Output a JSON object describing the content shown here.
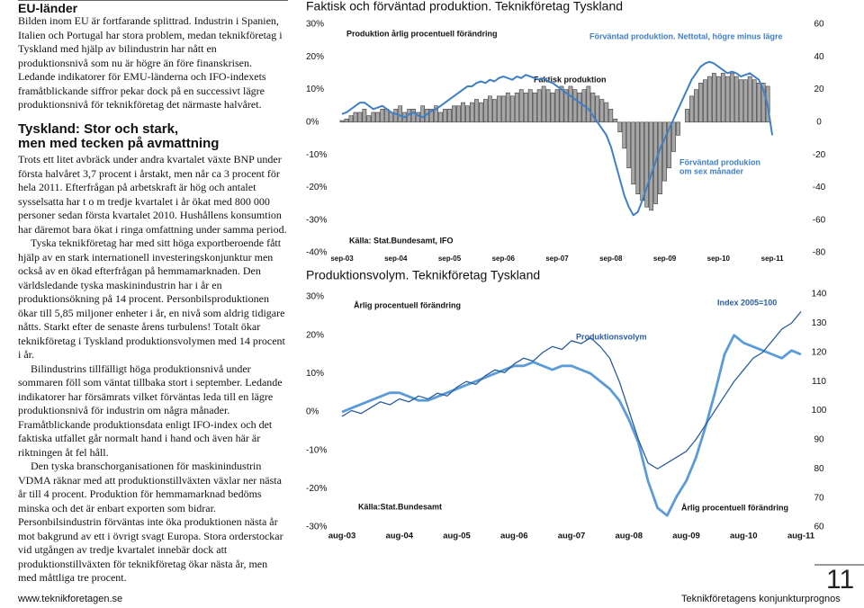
{
  "document": {
    "sections": [
      {
        "title_lines": [
          "EU-länder"
        ],
        "paragraphs": [
          "Bilden inom EU är fortfarande splittrad. Industrin i Spanien, Italien och Portugal har stora problem, medan teknikföretag i Tyskland med hjälp av bilindustrin har nått en produktionsnivå som nu är högre än före finanskrisen. Ledande indikatorer för EMU-länderna och IFO-indexets framåtblickande siffror pekar dock på en successivt lägre produktionsnivå för teknikföretag det närmaste halvåret."
        ]
      },
      {
        "title_lines": [
          "Tyskland: Stor och stark,",
          "men med tecken på avmattning"
        ],
        "paragraphs": [
          "Trots ett litet avbräck under andra kvartalet växte BNP under första halvåret 3,7 procent i årstakt, men når ca 3 procent för hela 2011. Efterfrågan på arbetskraft är hög och antalet sysselsatta har t o m tredje kvartalet i år ökat med 800 000 personer sedan första kvartalet 2010. Hushållens konsumtion har däremot bara ökat i ringa omfattning under samma period.",
          "Tyska teknikföretag har med sitt höga exportberoende fått hjälp av en stark internationell investeringskonjunktur men också av en ökad efterfrågan på hemmamarknaden. Den världsledande tyska maskinindustrin har i år en produktionsökning på 14 procent. Personbilsproduktionen ökar till 5,85 miljoner enheter i år, en nivå som aldrig tidigare nåtts. Starkt efter de senaste årens turbulens! Totalt ökar teknikföretag i Tyskland produktionsvolymen med 14 procent i år.",
          "Bilindustrins tillfälligt höga produktionsnivå under sommaren föll som väntat tillbaka stort i september. Ledande indikatorer har försämrats vilket förväntas leda till en lägre produktionsnivå för industrin om några månader. Framåtblickande produktionsdata enligt IFO-index och det faktiska utfallet går normalt hand i hand och även här är riktningen åt fel håll.",
          "Den tyska branschorganisationen för maskinindustrin VDMA räknar med att produktionstillväxten växlar ner nästa år till 4 procent. Produktion för hemmamarknad bedöms minska och det är enbart exporten som bidrar. Personbilsindustrin förväntas inte öka produktionen nästa år mot bakgrund av ett i övrigt svagt Europa. Stora orderstockar vid utgången av tredje kvartalet innebär dock att produktionstillväxten för teknikföretag ökar nästa år, men med måttliga tre procent."
        ]
      }
    ],
    "footer": {
      "url": "www.teknikforetagen.se",
      "publication": "Teknikföretagens konjunkturprognos",
      "page": 11
    }
  },
  "chart_data": [
    {
      "type": "bar",
      "title": "Faktisk och förväntad produktion. Teknikföretag Tyskland",
      "categories": [
        "sep-03",
        null,
        null,
        null,
        null,
        null,
        null,
        null,
        null,
        null,
        null,
        null,
        "sep-04",
        null,
        null,
        null,
        null,
        null,
        null,
        null,
        null,
        null,
        null,
        null,
        "sep-05",
        null,
        null,
        null,
        null,
        null,
        null,
        null,
        null,
        null,
        null,
        null,
        "sep-06",
        null,
        null,
        null,
        null,
        null,
        null,
        null,
        null,
        null,
        null,
        null,
        "sep-07",
        null,
        null,
        null,
        null,
        null,
        null,
        null,
        null,
        null,
        null,
        null,
        "sep-08",
        null,
        null,
        null,
        null,
        null,
        null,
        null,
        null,
        null,
        null,
        null,
        "sep-09",
        null,
        null,
        null,
        null,
        null,
        null,
        null,
        null,
        null,
        null,
        null,
        "sep-10",
        null,
        null,
        null,
        null,
        null,
        null,
        null,
        null,
        null,
        null,
        null,
        "sep-11"
      ],
      "series": [
        {
          "name": "Faktisk produktion",
          "color": "#a6a6a6",
          "values": [
            0.5,
            1,
            2,
            3,
            3,
            4,
            2,
            3,
            3,
            4,
            4,
            3,
            4,
            5,
            3,
            4,
            4,
            3,
            5,
            4,
            4,
            5,
            3,
            4,
            4,
            5,
            5,
            6,
            5,
            6,
            7,
            6,
            7,
            8,
            7,
            8,
            8,
            9,
            8,
            9,
            10,
            9,
            10,
            9,
            10,
            11,
            10,
            9,
            10,
            11,
            10,
            11,
            10,
            9,
            10,
            11,
            9,
            8,
            7,
            6,
            4,
            1,
            -3,
            -8,
            -14,
            -19,
            -22,
            -24,
            -26,
            -27,
            -25,
            -22,
            -18,
            -14,
            -9,
            -4,
            0,
            4,
            8,
            10,
            12,
            13,
            14,
            15,
            14,
            15,
            14,
            15,
            14,
            13,
            13,
            14,
            13,
            12,
            12,
            11,
            null
          ]
        },
        {
          "name": "Förväntad produktion. Nettotal, högre minus lägre",
          "type": "line",
          "axis": "y2",
          "color": "#3f7fc6",
          "values": [
            5,
            6,
            8,
            10,
            12,
            12,
            10,
            8,
            9,
            10,
            8,
            6,
            5,
            4,
            3,
            5,
            6,
            4,
            3,
            5,
            7,
            8,
            10,
            12,
            14,
            16,
            18,
            20,
            22,
            22,
            24,
            25,
            24,
            26,
            25,
            27,
            28,
            27,
            26,
            28,
            27,
            29,
            28,
            27,
            26,
            27,
            25,
            24,
            22,
            20,
            18,
            16,
            14,
            12,
            10,
            8,
            4,
            0,
            -4,
            -8,
            -15,
            -25,
            -35,
            -45,
            -52,
            -57,
            -55,
            -48,
            -40,
            -32,
            -24,
            -16,
            -10,
            -4,
            2,
            8,
            14,
            20,
            26,
            30,
            34,
            36,
            37,
            36,
            34,
            32,
            30,
            31,
            30,
            28,
            29,
            30,
            28,
            26,
            20,
            10,
            -8
          ]
        }
      ],
      "annotations": [
        {
          "text": "Produktion årlig procentuell förändring",
          "color": "#111111"
        },
        {
          "text": "Faktisk produktion",
          "color": "#111111"
        },
        {
          "text": "Förväntad produkion",
          "color": "#3f7fc6"
        },
        {
          "text": "om sex månader",
          "color": "#3f7fc6"
        },
        {
          "text": "Källa: Stat.Bundesamt, IFO",
          "color": "#111111"
        }
      ],
      "ylim": [
        -40,
        30
      ],
      "yticks": [
        {
          "value": 30,
          "label": "30%"
        },
        {
          "value": 20,
          "label": "20%"
        },
        {
          "value": 10,
          "label": "10%"
        },
        {
          "value": 0,
          "label": "0%"
        },
        {
          "value": -10,
          "label": "-10%"
        },
        {
          "value": -20,
          "label": "-20%"
        },
        {
          "value": -30,
          "label": "-30%"
        },
        {
          "value": -40,
          "label": "-40%"
        }
      ],
      "y2lim": [
        -80,
        60
      ],
      "y2ticks": [
        60,
        40,
        20,
        0,
        -20,
        -40,
        -60,
        -80
      ]
    },
    {
      "type": "line",
      "title": "Produktionsvolym. Teknikföretag Tyskland",
      "categories": [
        "aug-03",
        null,
        null,
        null,
        null,
        null,
        "aug-04",
        null,
        null,
        null,
        null,
        null,
        "aug-05",
        null,
        null,
        null,
        null,
        null,
        "aug-06",
        null,
        null,
        null,
        null,
        null,
        "aug-07",
        null,
        null,
        null,
        null,
        null,
        "aug-08",
        null,
        null,
        null,
        null,
        null,
        "aug-09",
        null,
        null,
        null,
        null,
        null,
        "aug-10",
        null,
        null,
        null,
        null,
        null,
        "aug-11"
      ],
      "series": [
        {
          "name": "Årlig procentuell förändring",
          "color": "#5a9bd8",
          "values": [
            0,
            1,
            2,
            3,
            4,
            5,
            5,
            4,
            3,
            3,
            4,
            5,
            6,
            7,
            8,
            9,
            10,
            11,
            12,
            12,
            13,
            12,
            11,
            12,
            12,
            11,
            10,
            8,
            6,
            3,
            -2,
            -8,
            -18,
            -25,
            -27,
            -22,
            -18,
            -12,
            -4,
            5,
            15,
            20,
            18,
            17,
            16,
            15,
            14,
            16,
            15
          ]
        },
        {
          "name": "Produktionsvolym",
          "axis": "y2",
          "color": "#2a5d9e",
          "values": [
            98,
            100,
            99,
            101,
            103,
            102,
            104,
            103,
            105,
            104,
            106,
            105,
            108,
            110,
            109,
            112,
            114,
            113,
            116,
            118,
            117,
            120,
            122,
            121,
            124,
            123,
            125,
            122,
            118,
            110,
            100,
            90,
            82,
            80,
            82,
            84,
            86,
            90,
            95,
            100,
            105,
            110,
            114,
            118,
            120,
            124,
            128,
            130,
            134
          ]
        }
      ],
      "annotations": [
        {
          "text": "Index 2005=100",
          "color": "#2a5d9e"
        },
        {
          "text": "Källa:Stat.Bundesamt",
          "color": "#111111"
        },
        {
          "text": "Årlig procentuell förändring",
          "color": "#111111"
        }
      ],
      "ylim": [
        -30,
        30
      ],
      "yticks": [
        {
          "value": 30,
          "label": "30%"
        },
        {
          "value": 20,
          "label": "20%"
        },
        {
          "value": 10,
          "label": "10%"
        },
        {
          "value": 0,
          "label": "0%"
        },
        {
          "value": -10,
          "label": "-10%"
        },
        {
          "value": -20,
          "label": "-20%"
        },
        {
          "value": -30,
          "label": "-30%"
        }
      ],
      "y2lim": [
        60,
        140
      ],
      "y2ticks": [
        140,
        130,
        120,
        110,
        100,
        90,
        80,
        70,
        60
      ]
    }
  ]
}
